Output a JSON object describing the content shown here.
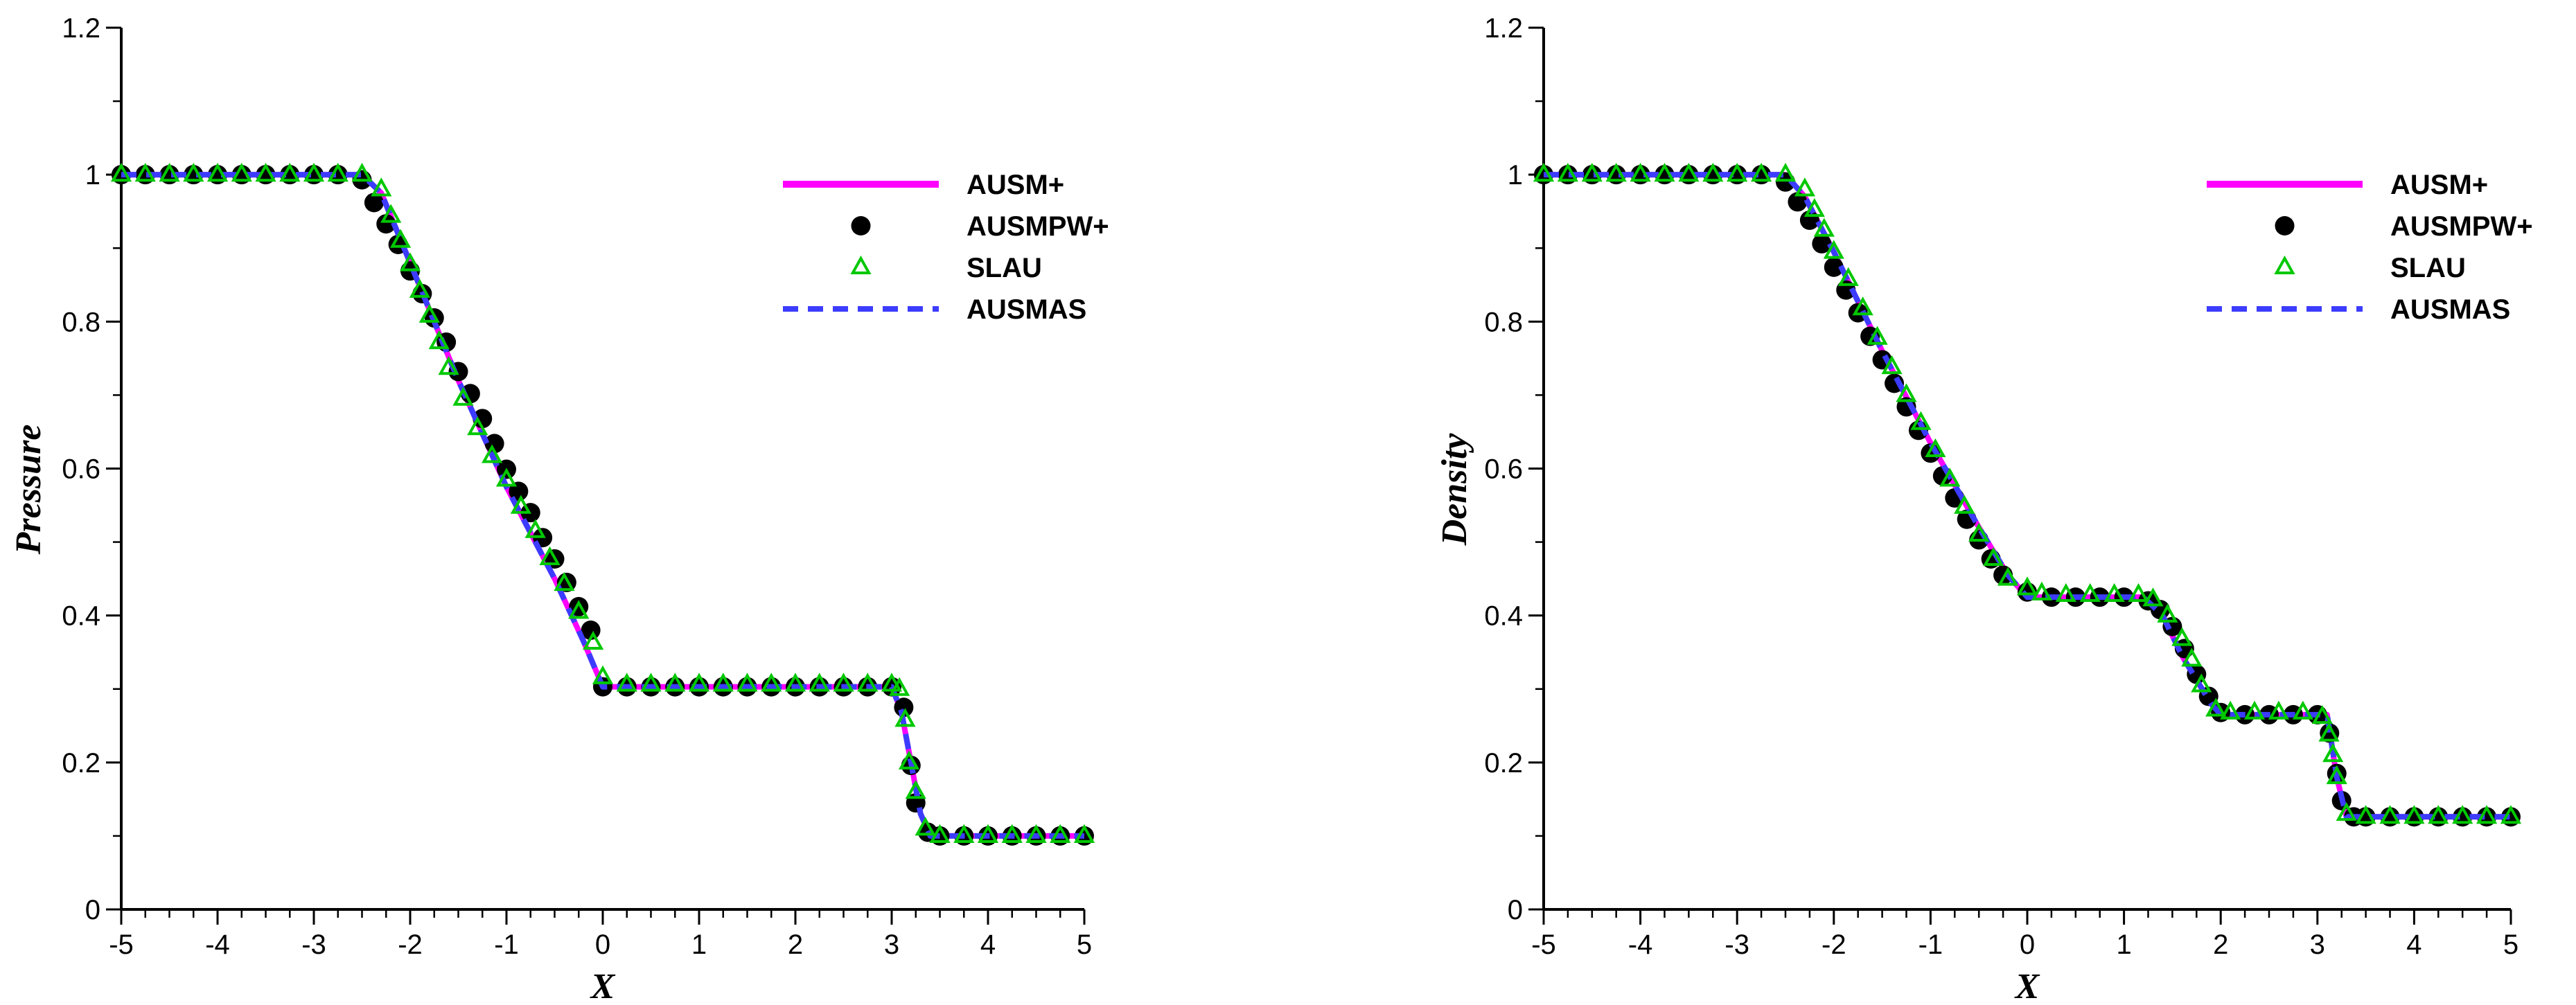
{
  "chart_data": [
    {
      "type": "line",
      "title": "",
      "xlabel": "X",
      "ylabel": "Pressure",
      "xlim": [
        -5,
        5
      ],
      "ylim": [
        0,
        1.2
      ],
      "x_ticks": [
        "-5",
        "-4",
        "-3",
        "-2",
        "-1",
        "0",
        "1",
        "2",
        "3",
        "4",
        "5"
      ],
      "y_ticks": [
        "0",
        "0.2",
        "0.4",
        "0.6",
        "0.8",
        "1",
        "1.2"
      ],
      "grid": false,
      "legend_position": "top-right",
      "line_x": [
        -5,
        -2.5,
        -2.3,
        -2.0,
        -1.5,
        -1.0,
        -0.5,
        -0.2,
        0.0,
        3.0,
        3.1,
        3.2,
        3.3,
        3.4,
        5.0
      ],
      "series": [
        {
          "name": "AUSM+",
          "style": "line",
          "color": "#ff00ff",
          "y": [
            1.0,
            1.0,
            0.975,
            0.88,
            0.72,
            0.575,
            0.45,
            0.365,
            0.303,
            0.303,
            0.27,
            0.2,
            0.13,
            0.1,
            0.1
          ]
        },
        {
          "name": "AUSMPW+",
          "style": "marker-circle",
          "color": "#000000",
          "points": [
            [
              -5.0,
              1.0
            ],
            [
              -4.75,
              1.0
            ],
            [
              -4.5,
              1.0
            ],
            [
              -4.25,
              1.0
            ],
            [
              -4.0,
              1.0
            ],
            [
              -3.75,
              1.0
            ],
            [
              -3.5,
              1.0
            ],
            [
              -3.25,
              1.0
            ],
            [
              -3.0,
              1.0
            ],
            [
              -2.75,
              1.0
            ],
            [
              -2.5,
              0.993
            ],
            [
              -2.375,
              0.962
            ],
            [
              -2.25,
              0.933
            ],
            [
              -2.125,
              0.905
            ],
            [
              -2.0,
              0.869
            ],
            [
              -1.875,
              0.838
            ],
            [
              -1.75,
              0.805
            ],
            [
              -1.625,
              0.772
            ],
            [
              -1.5,
              0.732
            ],
            [
              -1.375,
              0.702
            ],
            [
              -1.25,
              0.668
            ],
            [
              -1.125,
              0.634
            ],
            [
              -1.0,
              0.599
            ],
            [
              -0.875,
              0.569
            ],
            [
              -0.75,
              0.54
            ],
            [
              -0.625,
              0.506
            ],
            [
              -0.5,
              0.477
            ],
            [
              -0.375,
              0.445
            ],
            [
              -0.25,
              0.412
            ],
            [
              -0.125,
              0.38
            ],
            [
              0.0,
              0.303
            ],
            [
              0.25,
              0.303
            ],
            [
              0.5,
              0.303
            ],
            [
              0.75,
              0.303
            ],
            [
              1.0,
              0.303
            ],
            [
              1.25,
              0.303
            ],
            [
              1.5,
              0.303
            ],
            [
              1.75,
              0.303
            ],
            [
              2.0,
              0.303
            ],
            [
              2.25,
              0.303
            ],
            [
              2.5,
              0.303
            ],
            [
              2.75,
              0.303
            ],
            [
              3.0,
              0.303
            ],
            [
              3.125,
              0.275
            ],
            [
              3.2,
              0.196
            ],
            [
              3.25,
              0.145
            ],
            [
              3.375,
              0.105
            ],
            [
              3.5,
              0.1
            ],
            [
              3.75,
              0.1
            ],
            [
              4.0,
              0.1
            ],
            [
              4.25,
              0.1
            ],
            [
              4.5,
              0.1
            ],
            [
              4.75,
              0.1
            ],
            [
              5.0,
              0.1
            ]
          ]
        },
        {
          "name": "SLAU",
          "style": "marker-triangle",
          "color": "#00c800",
          "points": [
            [
              -5.0,
              1.0
            ],
            [
              -4.75,
              1.0
            ],
            [
              -4.5,
              1.0
            ],
            [
              -4.25,
              1.0
            ],
            [
              -4.0,
              1.0
            ],
            [
              -3.75,
              1.0
            ],
            [
              -3.5,
              1.0
            ],
            [
              -3.25,
              1.0
            ],
            [
              -3.0,
              1.0
            ],
            [
              -2.75,
              1.0
            ],
            [
              -2.5,
              1.0
            ],
            [
              -2.3,
              0.98
            ],
            [
              -2.2,
              0.944
            ],
            [
              -2.1,
              0.91
            ],
            [
              -2.0,
              0.878
            ],
            [
              -1.9,
              0.842
            ],
            [
              -1.8,
              0.808
            ],
            [
              -1.7,
              0.772
            ],
            [
              -1.6,
              0.737
            ],
            [
              -1.45,
              0.695
            ],
            [
              -1.3,
              0.655
            ],
            [
              -1.15,
              0.617
            ],
            [
              -1.0,
              0.585
            ],
            [
              -0.85,
              0.548
            ],
            [
              -0.7,
              0.515
            ],
            [
              -0.55,
              0.478
            ],
            [
              -0.4,
              0.443
            ],
            [
              -0.25,
              0.405
            ],
            [
              -0.1,
              0.363
            ],
            [
              0.0,
              0.316
            ],
            [
              0.25,
              0.306
            ],
            [
              0.5,
              0.306
            ],
            [
              0.75,
              0.306
            ],
            [
              1.0,
              0.306
            ],
            [
              1.25,
              0.306
            ],
            [
              1.5,
              0.306
            ],
            [
              1.75,
              0.306
            ],
            [
              2.0,
              0.306
            ],
            [
              2.25,
              0.306
            ],
            [
              2.5,
              0.306
            ],
            [
              2.75,
              0.306
            ],
            [
              3.0,
              0.306
            ],
            [
              3.08,
              0.3
            ],
            [
              3.14,
              0.258
            ],
            [
              3.18,
              0.2
            ],
            [
              3.25,
              0.16
            ],
            [
              3.35,
              0.11
            ],
            [
              3.5,
              0.1
            ],
            [
              3.75,
              0.1
            ],
            [
              4.0,
              0.1
            ],
            [
              4.25,
              0.1
            ],
            [
              4.5,
              0.1
            ],
            [
              4.75,
              0.1
            ],
            [
              5.0,
              0.1
            ]
          ]
        },
        {
          "name": "AUSMAS",
          "style": "dashed-line",
          "color": "#3c3cff",
          "y": [
            1.0,
            1.0,
            0.975,
            0.88,
            0.72,
            0.575,
            0.45,
            0.365,
            0.303,
            0.303,
            0.27,
            0.2,
            0.13,
            0.1,
            0.1
          ]
        }
      ]
    },
    {
      "type": "line",
      "title": "",
      "xlabel": "X",
      "ylabel": "Density",
      "xlim": [
        -5,
        5
      ],
      "ylim": [
        0,
        1.2
      ],
      "x_ticks": [
        "-5",
        "-4",
        "-3",
        "-2",
        "-1",
        "0",
        "1",
        "2",
        "3",
        "4",
        "5"
      ],
      "y_ticks": [
        "0",
        "0.2",
        "0.4",
        "0.6",
        "0.8",
        "1",
        "1.2"
      ],
      "grid": false,
      "legend_position": "top-right",
      "line_x": [
        -5,
        -2.5,
        -2.3,
        -2.0,
        -1.5,
        -1.0,
        -0.5,
        -0.2,
        0.0,
        1.2,
        1.4,
        1.6,
        1.9,
        2.0,
        3.1,
        3.2,
        3.3,
        5.0
      ],
      "series": [
        {
          "name": "AUSM+",
          "style": "line",
          "color": "#ff00ff",
          "y": [
            1.0,
            1.0,
            0.97,
            0.895,
            0.76,
            0.635,
            0.52,
            0.455,
            0.425,
            0.425,
            0.4,
            0.345,
            0.28,
            0.265,
            0.265,
            0.18,
            0.126,
            0.126
          ]
        },
        {
          "name": "AUSMPW+",
          "style": "marker-circle",
          "color": "#000000",
          "points": [
            [
              -5.0,
              1.0
            ],
            [
              -4.75,
              1.0
            ],
            [
              -4.5,
              1.0
            ],
            [
              -4.25,
              1.0
            ],
            [
              -4.0,
              1.0
            ],
            [
              -3.75,
              1.0
            ],
            [
              -3.5,
              1.0
            ],
            [
              -3.25,
              1.0
            ],
            [
              -3.0,
              1.0
            ],
            [
              -2.75,
              1.0
            ],
            [
              -2.5,
              0.99
            ],
            [
              -2.375,
              0.963
            ],
            [
              -2.25,
              0.938
            ],
            [
              -2.125,
              0.906
            ],
            [
              -2.0,
              0.874
            ],
            [
              -1.875,
              0.843
            ],
            [
              -1.75,
              0.812
            ],
            [
              -1.625,
              0.78
            ],
            [
              -1.5,
              0.748
            ],
            [
              -1.375,
              0.716
            ],
            [
              -1.25,
              0.684
            ],
            [
              -1.125,
              0.652
            ],
            [
              -1.0,
              0.621
            ],
            [
              -0.875,
              0.59
            ],
            [
              -0.75,
              0.56
            ],
            [
              -0.625,
              0.531
            ],
            [
              -0.5,
              0.503
            ],
            [
              -0.375,
              0.477
            ],
            [
              -0.25,
              0.455
            ],
            [
              0.0,
              0.432
            ],
            [
              0.25,
              0.425
            ],
            [
              0.5,
              0.425
            ],
            [
              0.75,
              0.425
            ],
            [
              1.0,
              0.425
            ],
            [
              1.25,
              0.42
            ],
            [
              1.375,
              0.408
            ],
            [
              1.5,
              0.385
            ],
            [
              1.625,
              0.355
            ],
            [
              1.75,
              0.32
            ],
            [
              1.875,
              0.29
            ],
            [
              2.0,
              0.268
            ],
            [
              2.25,
              0.265
            ],
            [
              2.5,
              0.265
            ],
            [
              2.75,
              0.265
            ],
            [
              3.0,
              0.265
            ],
            [
              3.125,
              0.24
            ],
            [
              3.2,
              0.185
            ],
            [
              3.25,
              0.148
            ],
            [
              3.375,
              0.126
            ],
            [
              3.5,
              0.126
            ],
            [
              3.75,
              0.126
            ],
            [
              4.0,
              0.126
            ],
            [
              4.25,
              0.126
            ],
            [
              4.5,
              0.126
            ],
            [
              4.75,
              0.126
            ],
            [
              5.0,
              0.126
            ]
          ]
        },
        {
          "name": "SLAU",
          "style": "marker-triangle",
          "color": "#00c800",
          "points": [
            [
              -5.0,
              1.0
            ],
            [
              -4.75,
              1.0
            ],
            [
              -4.5,
              1.0
            ],
            [
              -4.25,
              1.0
            ],
            [
              -4.0,
              1.0
            ],
            [
              -3.75,
              1.0
            ],
            [
              -3.5,
              1.0
            ],
            [
              -3.25,
              1.0
            ],
            [
              -3.0,
              1.0
            ],
            [
              -2.75,
              1.0
            ],
            [
              -2.5,
              1.0
            ],
            [
              -2.3,
              0.98
            ],
            [
              -2.2,
              0.952
            ],
            [
              -2.1,
              0.925
            ],
            [
              -2.0,
              0.895
            ],
            [
              -1.85,
              0.858
            ],
            [
              -1.7,
              0.818
            ],
            [
              -1.55,
              0.778
            ],
            [
              -1.4,
              0.738
            ],
            [
              -1.25,
              0.7
            ],
            [
              -1.1,
              0.662
            ],
            [
              -0.95,
              0.625
            ],
            [
              -0.8,
              0.585
            ],
            [
              -0.65,
              0.548
            ],
            [
              -0.5,
              0.51
            ],
            [
              -0.35,
              0.477
            ],
            [
              -0.2,
              0.45
            ],
            [
              0.0,
              0.437
            ],
            [
              0.15,
              0.43
            ],
            [
              0.4,
              0.428
            ],
            [
              0.65,
              0.428
            ],
            [
              0.9,
              0.428
            ],
            [
              1.15,
              0.428
            ],
            [
              1.3,
              0.422
            ],
            [
              1.45,
              0.4
            ],
            [
              1.6,
              0.368
            ],
            [
              1.7,
              0.34
            ],
            [
              1.8,
              0.305
            ],
            [
              1.95,
              0.272
            ],
            [
              2.1,
              0.268
            ],
            [
              2.35,
              0.268
            ],
            [
              2.6,
              0.268
            ],
            [
              2.85,
              0.268
            ],
            [
              3.05,
              0.262
            ],
            [
              3.12,
              0.238
            ],
            [
              3.16,
              0.21
            ],
            [
              3.2,
              0.18
            ],
            [
              3.3,
              0.13
            ],
            [
              3.5,
              0.126
            ],
            [
              3.75,
              0.126
            ],
            [
              4.0,
              0.126
            ],
            [
              4.25,
              0.126
            ],
            [
              4.5,
              0.126
            ],
            [
              4.75,
              0.126
            ],
            [
              5.0,
              0.126
            ]
          ]
        },
        {
          "name": "AUSMAS",
          "style": "dashed-line",
          "color": "#3c3cff",
          "y": [
            1.0,
            1.0,
            0.97,
            0.895,
            0.76,
            0.635,
            0.52,
            0.455,
            0.425,
            0.425,
            0.4,
            0.345,
            0.28,
            0.265,
            0.265,
            0.18,
            0.126,
            0.126
          ]
        }
      ]
    }
  ]
}
